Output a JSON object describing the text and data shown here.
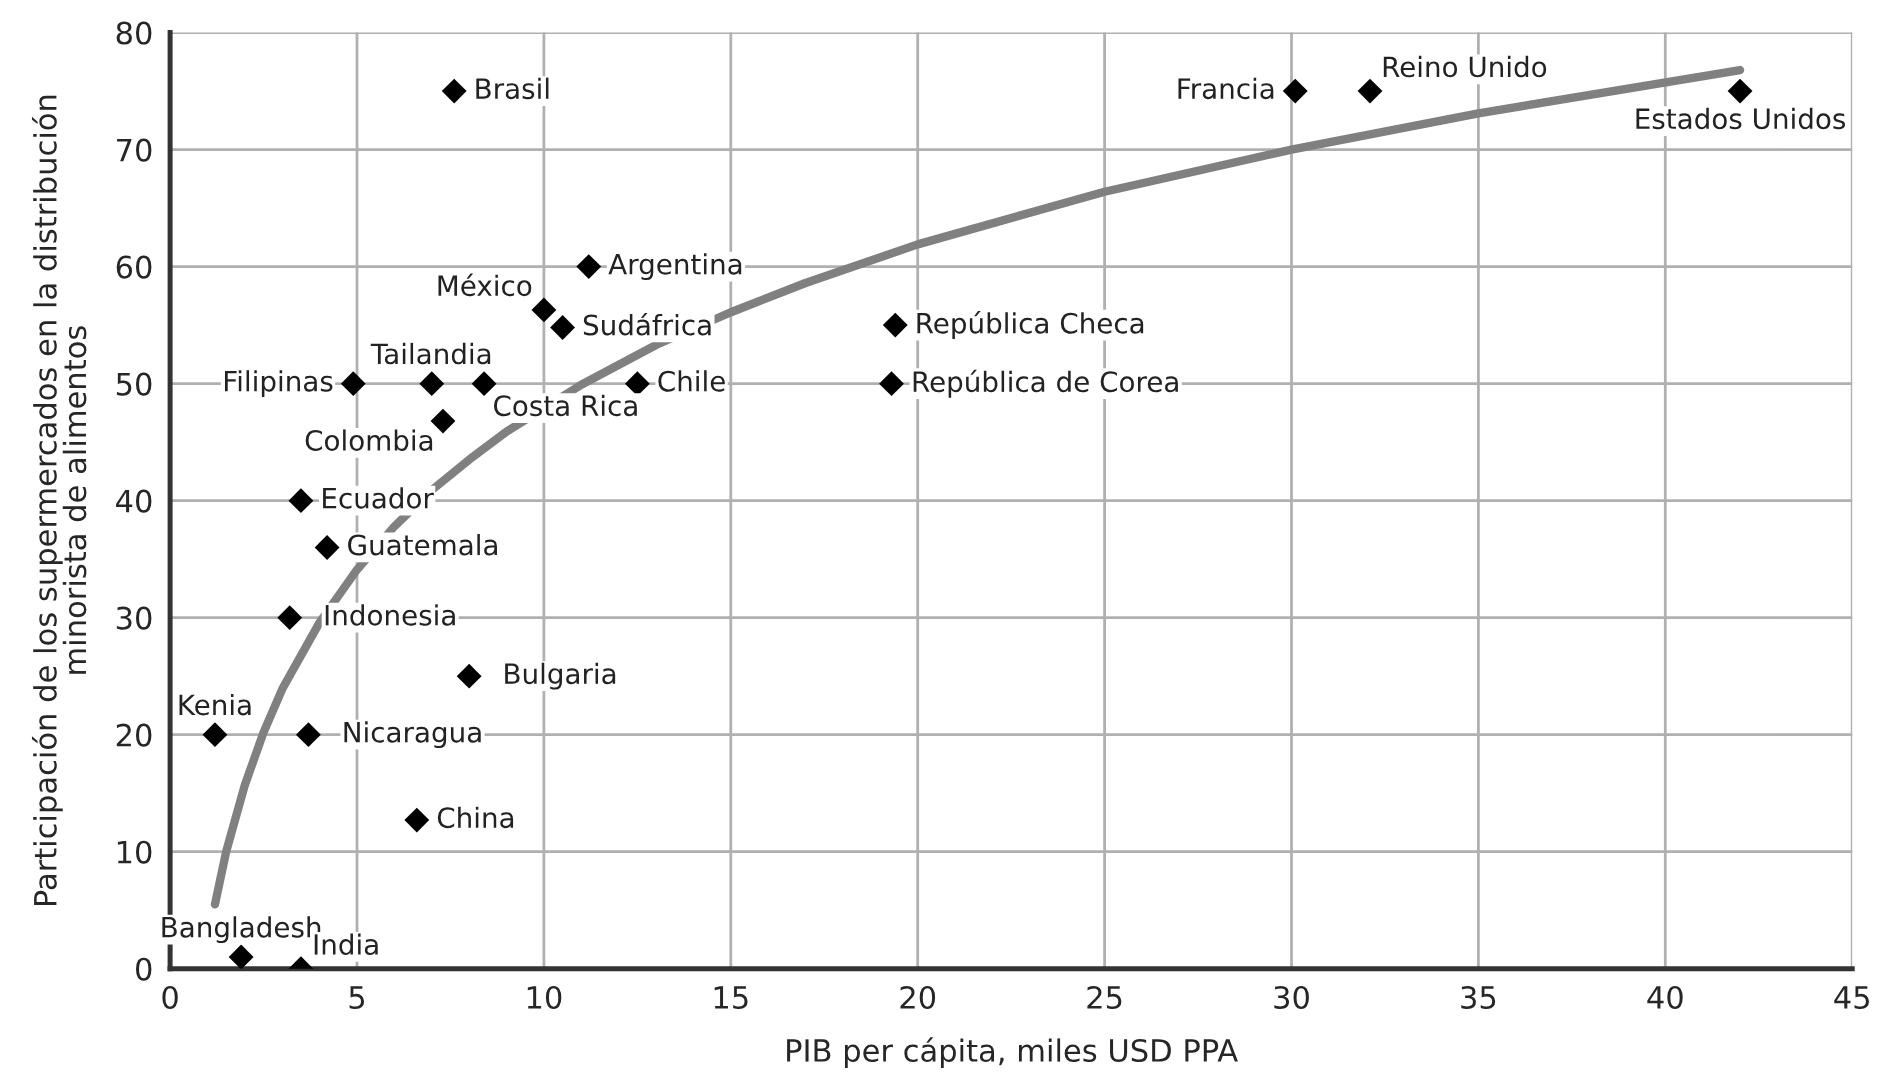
{
  "chart_data": {
    "type": "scatter",
    "xlabel": "PIB per cápita, miles USD PPA",
    "ylabel": "Participación de los supermercados en la distribución\nminorista de alimentos",
    "xlim": [
      0,
      45
    ],
    "ylim": [
      0,
      80
    ],
    "xticks": [
      0,
      5,
      10,
      15,
      20,
      25,
      30,
      35,
      40,
      45
    ],
    "yticks": [
      0,
      10,
      20,
      30,
      40,
      50,
      60,
      70,
      80
    ],
    "grid": true,
    "legend": false,
    "series": [
      {
        "color": "#000000",
        "marker": "diamond",
        "x": [
          7.6,
          30.1,
          32.1,
          42.0,
          11.2,
          10.0,
          10.5,
          4.9,
          7.0,
          8.4,
          12.5,
          7.3,
          19.4,
          19.3,
          3.5,
          4.2,
          3.2,
          8.0,
          1.2,
          3.7,
          6.6,
          1.9,
          3.5
        ],
        "values": [
          75,
          75,
          75,
          75,
          60,
          56.3,
          54.8,
          50,
          50,
          50,
          50,
          46.8,
          55,
          50,
          40,
          36,
          30,
          25,
          20,
          20,
          12.7,
          1,
          0
        ]
      },
      {
        "type": "line",
        "color": "#808080",
        "marker": "none",
        "line_style": "solid",
        "x": [
          1.2,
          1.5,
          2,
          2.5,
          3,
          4,
          5,
          6,
          7,
          8,
          9,
          11,
          13,
          15,
          17,
          20,
          25,
          30,
          35,
          42
        ],
        "values": [
          5.5,
          10.0,
          15.7,
          20.2,
          23.9,
          29.6,
          34.1,
          37.8,
          40.9,
          43.5,
          45.9,
          49.9,
          53.3,
          56.1,
          58.6,
          61.9,
          66.4,
          70.0,
          73.1,
          76.8
        ]
      }
    ],
    "annotations": [
      {
        "text": "Brasil",
        "x": 7.6,
        "y": 75
      },
      {
        "text": "Francia",
        "x": 30.1,
        "y": 75
      },
      {
        "text": "Reino Unido",
        "x": 32.1,
        "y": 75
      },
      {
        "text": "Estados Unidos",
        "x": 42.0,
        "y": 75
      },
      {
        "text": "Argentina",
        "x": 11.2,
        "y": 60
      },
      {
        "text": "México",
        "x": 10.0,
        "y": 56.3
      },
      {
        "text": "Sudáfrica",
        "x": 10.5,
        "y": 54.8
      },
      {
        "text": "Filipinas",
        "x": 4.9,
        "y": 50
      },
      {
        "text": "Tailandia",
        "x": 7.0,
        "y": 50
      },
      {
        "text": "Costa Rica",
        "x": 8.4,
        "y": 50
      },
      {
        "text": "Chile",
        "x": 12.5,
        "y": 50
      },
      {
        "text": "Colombia",
        "x": 7.3,
        "y": 46.8
      },
      {
        "text": "República Checa",
        "x": 19.4,
        "y": 55
      },
      {
        "text": "República de Corea",
        "x": 19.3,
        "y": 50
      },
      {
        "text": "Ecuador",
        "x": 3.5,
        "y": 40
      },
      {
        "text": "Guatemala",
        "x": 4.2,
        "y": 36
      },
      {
        "text": "Indonesia",
        "x": 3.2,
        "y": 30
      },
      {
        "text": "Bulgaria",
        "x": 8.0,
        "y": 25
      },
      {
        "text": "Kenia",
        "x": 1.2,
        "y": 20
      },
      {
        "text": "Nicaragua",
        "x": 3.7,
        "y": 20
      },
      {
        "text": "China",
        "x": 6.6,
        "y": 12.7
      },
      {
        "text": "Bangladesh",
        "x": 1.9,
        "y": 1
      },
      {
        "text": "India",
        "x": 3.5,
        "y": 0
      }
    ]
  }
}
